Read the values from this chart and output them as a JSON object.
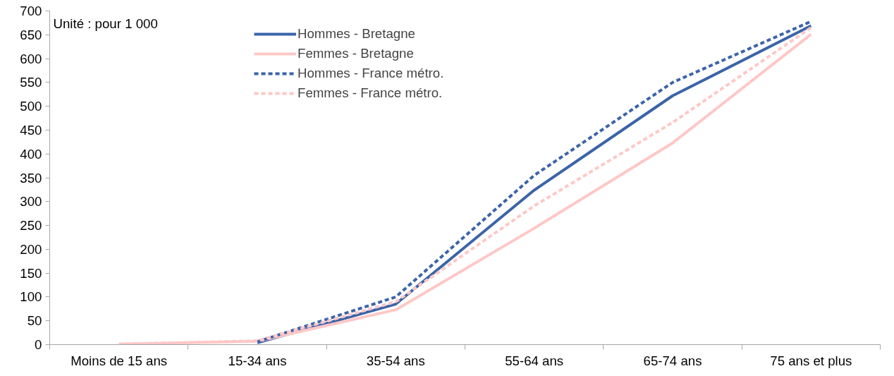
{
  "chart_data": {
    "type": "line",
    "categories": [
      "Moins de 15 ans",
      "15-34 ans",
      "35-54 ans",
      "55-64 ans",
      "65-74 ans",
      "75 ans et plus"
    ],
    "series": [
      {
        "name": "Hommes - Bretagne",
        "color": "#3b64a8",
        "line_style": "solid",
        "values": [
          null,
          4,
          85,
          324,
          522,
          669
        ]
      },
      {
        "name": "Femmes - Bretagne",
        "color": "#ffc7c7",
        "line_style": "solid",
        "values": [
          1,
          7,
          73,
          244,
          423,
          651
        ]
      },
      {
        "name": "Hommes - France métro.",
        "color": "#3b64a8",
        "line_style": "dashed",
        "values": [
          null,
          6,
          100,
          355,
          550,
          678
        ]
      },
      {
        "name": "Femmes - France métro.",
        "color": "#ffc7c7",
        "line_style": "dashed",
        "values": [
          1,
          8,
          90,
          291,
          466,
          665
        ]
      }
    ],
    "ylim": [
      0,
      700
    ],
    "yticks": [
      0,
      50,
      100,
      150,
      200,
      250,
      300,
      350,
      400,
      450,
      500,
      550,
      600,
      650,
      700
    ],
    "annotations": [
      "Unité : pour 1 000"
    ],
    "grid": false,
    "legend": "top",
    "marker": "none"
  }
}
